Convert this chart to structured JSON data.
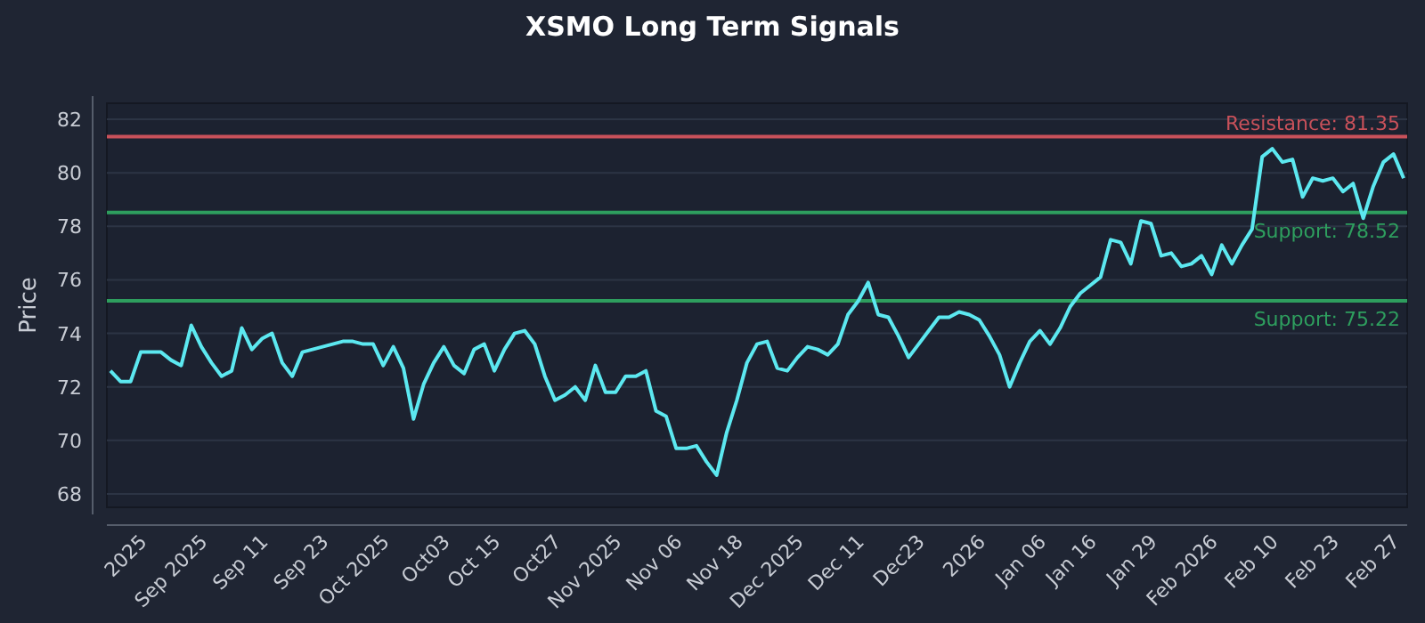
{
  "chart_data": {
    "type": "line",
    "title": "XSMO Long Term Signals",
    "ylabel": "Price",
    "categories": [
      null,
      null,
      null,
      "2025",
      null,
      null,
      null,
      null,
      null,
      "Sep 2025",
      null,
      null,
      null,
      null,
      null,
      "Sep 11",
      null,
      null,
      null,
      null,
      null,
      "Sep 23",
      null,
      null,
      null,
      null,
      null,
      "Oct 2025",
      null,
      null,
      null,
      null,
      null,
      "Oct03",
      null,
      null,
      null,
      null,
      "Oct 15",
      null,
      null,
      null,
      null,
      null,
      "Oct27",
      null,
      null,
      null,
      null,
      null,
      "Nov 2025",
      null,
      null,
      null,
      null,
      null,
      "Nov 06",
      null,
      null,
      null,
      null,
      null,
      "Nov 18",
      null,
      null,
      null,
      null,
      null,
      "Dec 2025",
      null,
      null,
      null,
      null,
      null,
      "Dec 11",
      null,
      null,
      null,
      null,
      null,
      "Dec23",
      null,
      null,
      null,
      null,
      null,
      "2026",
      null,
      null,
      null,
      null,
      null,
      "Jan 06",
      null,
      null,
      null,
      null,
      "Jan 16",
      null,
      null,
      null,
      null,
      null,
      "Jan 29",
      null,
      null,
      null,
      null,
      null,
      "Feb 2026",
      null,
      null,
      null,
      null,
      null,
      "Feb 10",
      null,
      null,
      null,
      null,
      null,
      "Feb 23",
      null,
      null,
      null,
      null,
      null,
      "Feb 27",
      null
    ],
    "series": [
      {
        "color": "#5ce8f0",
        "values": [
          72.6,
          72.2,
          72.2,
          73.3,
          73.3,
          73.3,
          73.0,
          72.8,
          74.3,
          73.5,
          72.9,
          72.4,
          72.6,
          74.2,
          73.4,
          73.8,
          74.0,
          72.9,
          72.4,
          73.3,
          73.4,
          73.5,
          73.6,
          73.7,
          73.7,
          73.6,
          73.6,
          72.8,
          73.5,
          72.7,
          70.8,
          72.1,
          72.9,
          73.5,
          72.8,
          72.5,
          73.4,
          73.6,
          72.6,
          73.4,
          74.0,
          74.1,
          73.6,
          72.4,
          71.5,
          71.7,
          72.0,
          71.5,
          72.8,
          71.8,
          71.8,
          72.4,
          72.4,
          72.6,
          71.1,
          70.9,
          69.7,
          69.7,
          69.8,
          69.2,
          68.7,
          70.3,
          71.5,
          72.9,
          73.6,
          73.7,
          72.7,
          72.6,
          73.1,
          73.5,
          73.4,
          73.2,
          73.6,
          74.7,
          75.2,
          75.9,
          74.7,
          74.6,
          73.9,
          73.1,
          73.6,
          74.1,
          74.6,
          74.6,
          74.8,
          74.7,
          74.5,
          73.9,
          73.2,
          72.0,
          72.9,
          73.7,
          74.1,
          73.6,
          74.2,
          75.0,
          75.5,
          75.8,
          76.1,
          77.5,
          77.4,
          76.6,
          78.2,
          78.1,
          76.9,
          77.0,
          76.5,
          76.6,
          76.9,
          76.2,
          77.3,
          76.6,
          77.3,
          77.9,
          80.6,
          80.9,
          80.4,
          80.5,
          79.1,
          79.8,
          79.7,
          79.8,
          79.3,
          79.6,
          78.3,
          79.5,
          80.4,
          80.7,
          79.8
        ]
      }
    ],
    "ylim": [
      67.5,
      82.6
    ],
    "yticks": [
      68,
      70,
      72,
      74,
      76,
      78,
      80,
      82
    ],
    "grid": "y",
    "line_style": "solid",
    "marker": "none",
    "ref_lines": [
      {
        "axis": "y",
        "value": 81.35,
        "label": "Resistance: 81.35",
        "color": "#c8515a"
      },
      {
        "axis": "y",
        "value": 78.52,
        "label": "Support: 78.52",
        "color": "#2e9e5e"
      },
      {
        "axis": "y",
        "value": 75.22,
        "label": "Support: 75.22",
        "color": "#2e9e5e"
      }
    ]
  }
}
